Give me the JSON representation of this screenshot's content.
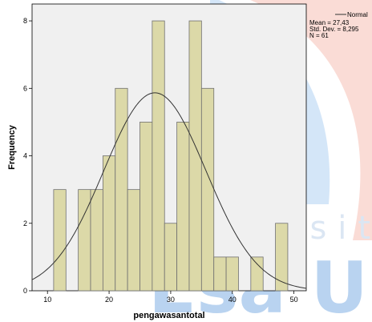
{
  "chart_data": {
    "type": "bar",
    "title": "",
    "xlabel": "pengawasantotal",
    "ylabel": "Frequency",
    "xlim": [
      7.5,
      52
    ],
    "ylim": [
      0,
      8.5
    ],
    "bin_width": 2,
    "bins": [
      {
        "x_start": 11,
        "x_end": 13,
        "count": 3
      },
      {
        "x_start": 15,
        "x_end": 17,
        "count": 3
      },
      {
        "x_start": 17,
        "x_end": 19,
        "count": 3
      },
      {
        "x_start": 19,
        "x_end": 21,
        "count": 4
      },
      {
        "x_start": 21,
        "x_end": 23,
        "count": 6
      },
      {
        "x_start": 23,
        "x_end": 25,
        "count": 3
      },
      {
        "x_start": 25,
        "x_end": 27,
        "count": 5
      },
      {
        "x_start": 27,
        "x_end": 29,
        "count": 8
      },
      {
        "x_start": 29,
        "x_end": 31,
        "count": 2
      },
      {
        "x_start": 31,
        "x_end": 33,
        "count": 5
      },
      {
        "x_start": 33,
        "x_end": 35,
        "count": 8
      },
      {
        "x_start": 35,
        "x_end": 37,
        "count": 6
      },
      {
        "x_start": 37,
        "x_end": 39,
        "count": 1
      },
      {
        "x_start": 39,
        "x_end": 41,
        "count": 1
      },
      {
        "x_start": 43,
        "x_end": 45,
        "count": 1
      },
      {
        "x_start": 47,
        "x_end": 49,
        "count": 2
      }
    ],
    "x_ticks": [
      10,
      20,
      30,
      40,
      50
    ],
    "y_ticks": [
      0,
      2,
      4,
      6,
      8
    ],
    "normal_curve": {
      "mean": 27.43,
      "sd": 8.295,
      "n": 61
    },
    "legend": {
      "position": "top-right",
      "entry": "Normal",
      "stats": [
        "Mean = 27,43",
        "Std. Dev. = 8,295",
        "N = 61"
      ]
    },
    "colors": {
      "bar_fill": "#dcd9a8",
      "bar_stroke": "#707070",
      "plot_background": "#f0f0f0",
      "curve": "#333333"
    }
  },
  "watermark": {
    "text_top": "Universitas",
    "text_bottom": "Esa U"
  }
}
